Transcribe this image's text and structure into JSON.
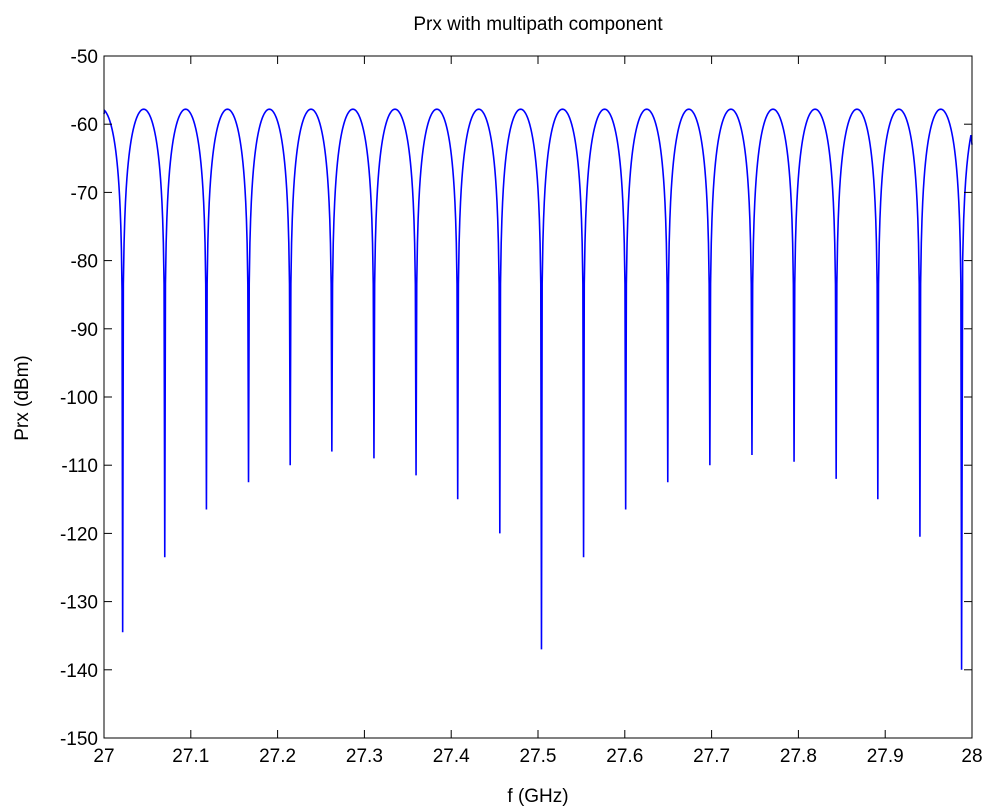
{
  "chart_data": {
    "type": "line",
    "title": "Prx with multipath component",
    "xlabel": "f (GHz)",
    "ylabel": "Prx (dBm)",
    "xlim": [
      27,
      28
    ],
    "ylim": [
      -150,
      -50
    ],
    "xticks": [
      27,
      27.1,
      27.2,
      27.3,
      27.4,
      27.5,
      27.6,
      27.7,
      27.8,
      27.9,
      28
    ],
    "xtick_labels": [
      "27",
      "27.1",
      "27.2",
      "27.3",
      "27.4",
      "27.5",
      "27.6",
      "27.7",
      "27.8",
      "27.9",
      "28"
    ],
    "yticks": [
      -50,
      -60,
      -70,
      -80,
      -90,
      -100,
      -110,
      -120,
      -130,
      -140,
      -150
    ],
    "ytick_labels": [
      "-50",
      "-60",
      "-70",
      "-80",
      "-90",
      "-100",
      "-110",
      "-120",
      "-130",
      "-140",
      "-150"
    ],
    "grid": false,
    "line_color": "#0000ff",
    "series": [
      {
        "peak_level": -57.8,
        "x_start": 27.0,
        "y_start": -58.5,
        "x_end": 28.0,
        "y_end": -63.0,
        "nulls": [
          {
            "x": 27.0215,
            "y": -134.5
          },
          {
            "x": 27.07,
            "y": -123.5
          },
          {
            "x": 27.118,
            "y": -116.5
          },
          {
            "x": 27.1665,
            "y": -112.5
          },
          {
            "x": 27.2145,
            "y": -110.0
          },
          {
            "x": 27.2625,
            "y": -108.0
          },
          {
            "x": 27.311,
            "y": -109.0
          },
          {
            "x": 27.3595,
            "y": -111.5
          },
          {
            "x": 27.4075,
            "y": -115.0
          },
          {
            "x": 27.456,
            "y": -120.0
          },
          {
            "x": 27.504,
            "y": -137.0
          },
          {
            "x": 27.5525,
            "y": -123.5
          },
          {
            "x": 27.601,
            "y": -116.5
          },
          {
            "x": 27.6495,
            "y": -112.5
          },
          {
            "x": 27.698,
            "y": -110.0
          },
          {
            "x": 27.7465,
            "y": -108.5
          },
          {
            "x": 27.795,
            "y": -109.5
          },
          {
            "x": 27.8435,
            "y": -112.0
          },
          {
            "x": 27.8915,
            "y": -115.0
          },
          {
            "x": 27.94,
            "y": -120.5
          },
          {
            "x": 27.988,
            "y": -140.0
          }
        ]
      }
    ]
  }
}
